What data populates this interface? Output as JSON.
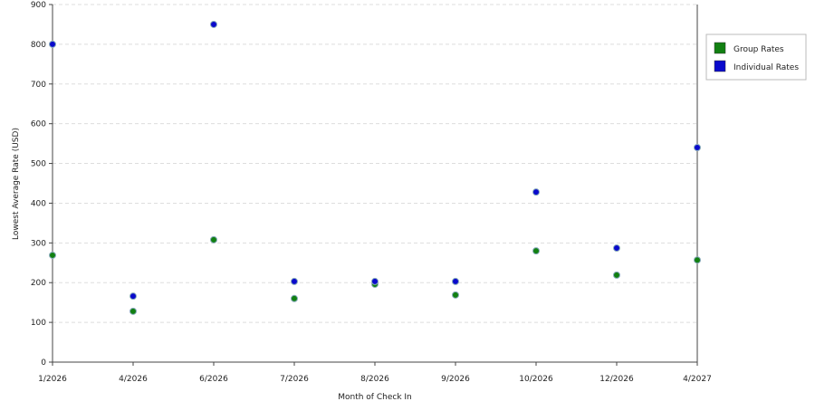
{
  "chart_data": {
    "type": "line",
    "x_label": "Month of Check In",
    "y_label": "Lowest Average Rate (USD)",
    "categories": [
      "1/2026",
      "4/2026",
      "6/2026",
      "7/2026",
      "8/2026",
      "9/2026",
      "10/2026",
      "12/2026",
      "4/2027"
    ],
    "series": [
      {
        "name": "Group Rates",
        "color": "#118011",
        "values": [
          269,
          128,
          308,
          160,
          196,
          169,
          280,
          219,
          257
        ]
      },
      {
        "name": "Individual Rates",
        "color": "#0a0acc",
        "values": [
          800,
          166,
          850,
          203,
          203,
          203,
          428,
          287,
          540
        ]
      }
    ],
    "ylim": [
      0,
      900
    ],
    "yticks": [
      0,
      100,
      200,
      300,
      400,
      500,
      600,
      700,
      800,
      900
    ],
    "grid": true,
    "legend": "right"
  }
}
